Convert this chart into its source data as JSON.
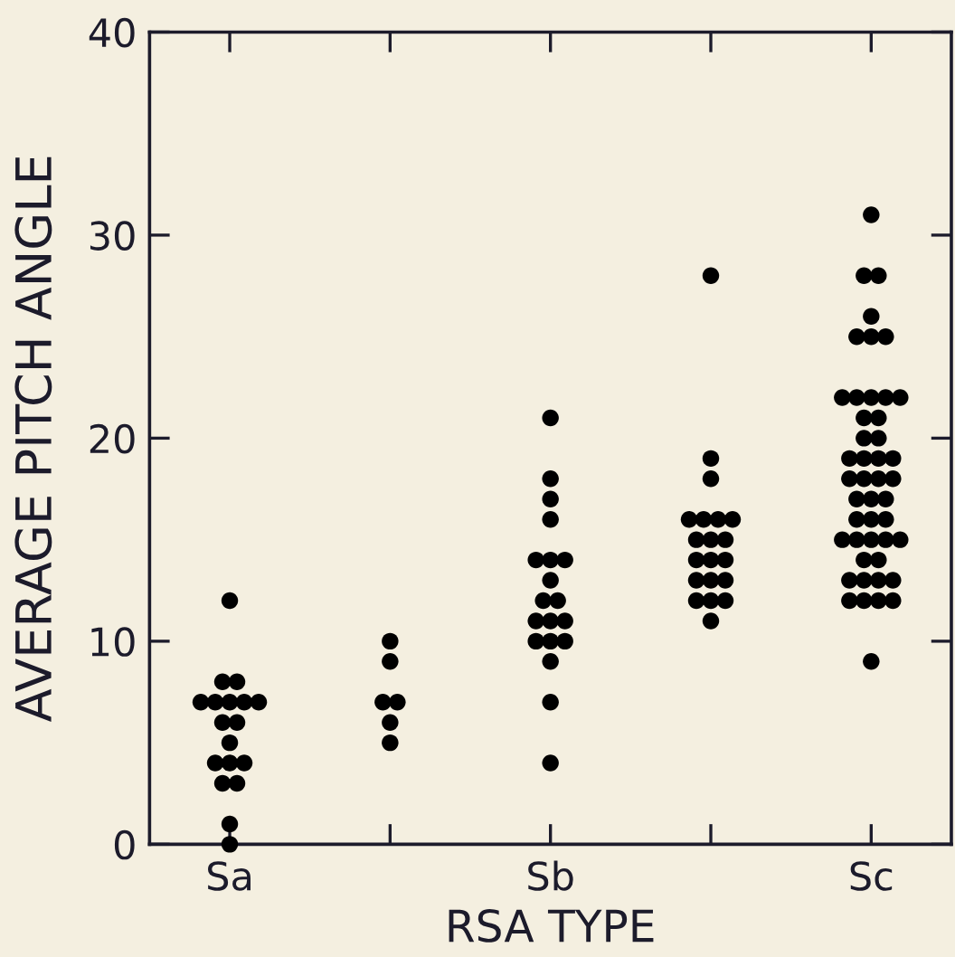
{
  "chart_data": {
    "type": "scatter",
    "xlabel": "RSA TYPE",
    "ylabel": "AVERAGE PITCH ANGLE",
    "categories": [
      "Sa",
      null,
      "Sb",
      null,
      "Sc"
    ],
    "ylim": [
      0,
      40
    ],
    "yticks": [
      0,
      10,
      20,
      30,
      40
    ],
    "grid": false,
    "marker": "circle",
    "series": [
      {
        "color": "#000000",
        "values": [
          12,
          10,
          21,
          28,
          31
        ]
      },
      {
        "color": "#000000",
        "values": [
          8,
          9,
          18,
          19,
          28
        ]
      },
      {
        "color": "#000000",
        "values": [
          8,
          7,
          17,
          18,
          28
        ]
      },
      {
        "color": "#000000",
        "values": [
          7,
          7,
          16,
          16,
          26
        ]
      },
      {
        "color": "#000000",
        "values": [
          7,
          6,
          14,
          16,
          25
        ]
      },
      {
        "color": "#000000",
        "values": [
          7,
          5,
          14,
          16,
          25
        ]
      },
      {
        "color": "#000000",
        "values": [
          7,
          null,
          14,
          16,
          25
        ]
      },
      {
        "color": "#000000",
        "values": [
          7,
          null,
          13,
          15,
          22
        ]
      },
      {
        "color": "#000000",
        "values": [
          6,
          null,
          12,
          15,
          22
        ]
      },
      {
        "color": "#000000",
        "values": [
          6,
          null,
          12,
          15,
          22
        ]
      },
      {
        "color": "#000000",
        "values": [
          5,
          null,
          11,
          14,
          22
        ]
      },
      {
        "color": "#000000",
        "values": [
          4,
          null,
          11,
          14,
          22
        ]
      },
      {
        "color": "#000000",
        "values": [
          4,
          null,
          11,
          14,
          21
        ]
      },
      {
        "color": "#000000",
        "values": [
          4,
          null,
          10,
          13,
          21
        ]
      },
      {
        "color": "#000000",
        "values": [
          3,
          null,
          10,
          13,
          20
        ]
      },
      {
        "color": "#000000",
        "values": [
          3,
          null,
          10,
          13,
          20
        ]
      },
      {
        "color": "#000000",
        "values": [
          1,
          null,
          9,
          12,
          19
        ]
      },
      {
        "color": "#000000",
        "values": [
          0,
          null,
          7,
          12,
          19
        ]
      },
      {
        "color": "#000000",
        "values": [
          null,
          null,
          4,
          12,
          19
        ]
      },
      {
        "color": "#000000",
        "values": [
          null,
          null,
          null,
          11,
          19
        ]
      },
      {
        "color": "#000000",
        "values": [
          null,
          null,
          null,
          null,
          18
        ]
      },
      {
        "color": "#000000",
        "values": [
          null,
          null,
          null,
          null,
          18
        ]
      },
      {
        "color": "#000000",
        "values": [
          null,
          null,
          null,
          null,
          18
        ]
      },
      {
        "color": "#000000",
        "values": [
          null,
          null,
          null,
          null,
          18
        ]
      },
      {
        "color": "#000000",
        "values": [
          null,
          null,
          null,
          null,
          17
        ]
      },
      {
        "color": "#000000",
        "values": [
          null,
          null,
          null,
          null,
          17
        ]
      },
      {
        "color": "#000000",
        "values": [
          null,
          null,
          null,
          null,
          17
        ]
      },
      {
        "color": "#000000",
        "values": [
          null,
          null,
          null,
          null,
          16
        ]
      },
      {
        "color": "#000000",
        "values": [
          null,
          null,
          null,
          null,
          16
        ]
      },
      {
        "color": "#000000",
        "values": [
          null,
          null,
          null,
          null,
          16
        ]
      },
      {
        "color": "#000000",
        "values": [
          null,
          null,
          null,
          null,
          15
        ]
      },
      {
        "color": "#000000",
        "values": [
          null,
          null,
          null,
          null,
          15
        ]
      },
      {
        "color": "#000000",
        "values": [
          null,
          null,
          null,
          null,
          15
        ]
      },
      {
        "color": "#000000",
        "values": [
          null,
          null,
          null,
          null,
          15
        ]
      },
      {
        "color": "#000000",
        "values": [
          null,
          null,
          null,
          null,
          15
        ]
      },
      {
        "color": "#000000",
        "values": [
          null,
          null,
          null,
          null,
          14
        ]
      },
      {
        "color": "#000000",
        "values": [
          null,
          null,
          null,
          null,
          14
        ]
      },
      {
        "color": "#000000",
        "values": [
          null,
          null,
          null,
          null,
          13
        ]
      },
      {
        "color": "#000000",
        "values": [
          null,
          null,
          null,
          null,
          13
        ]
      },
      {
        "color": "#000000",
        "values": [
          null,
          null,
          null,
          null,
          13
        ]
      },
      {
        "color": "#000000",
        "values": [
          null,
          null,
          null,
          null,
          13
        ]
      },
      {
        "color": "#000000",
        "values": [
          null,
          null,
          null,
          null,
          12
        ]
      },
      {
        "color": "#000000",
        "values": [
          null,
          null,
          null,
          null,
          12
        ]
      },
      {
        "color": "#000000",
        "values": [
          null,
          null,
          null,
          null,
          12
        ]
      },
      {
        "color": "#000000",
        "values": [
          null,
          null,
          null,
          null,
          12
        ]
      },
      {
        "color": "#000000",
        "values": [
          null,
          null,
          null,
          null,
          9
        ]
      }
    ]
  }
}
